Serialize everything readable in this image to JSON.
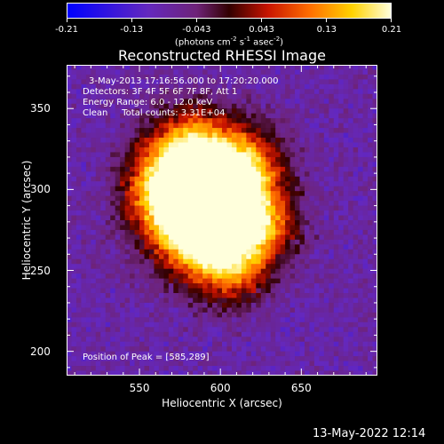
{
  "colorbar": {
    "ticks": [
      "-0.21",
      "-0.13",
      "-0.043",
      "0.043",
      "0.13",
      "0.21"
    ],
    "unit_main": "(photons cm",
    "unit_sup1": "-2",
    "unit_mid1": " s",
    "unit_sup2": "-1",
    "unit_mid2": " asec",
    "unit_sup3": "-2",
    "unit_end": ")"
  },
  "title": "Reconstructed RHESSI Image",
  "annotations": {
    "time": "3-May-2013 17:16:56.000 to 17:20:20.000",
    "detectors": "Detectors: 3F 4F 5F 6F 7F 8F, Att 1",
    "energy": "Energy Range: 6.0 - 12.0 keV",
    "clean": "Clean     Total counts: 3.31E+04",
    "peak": "Position of Peak = [585,289]"
  },
  "footer": "13-May-2022 12:14",
  "chart_data": {
    "type": "heatmap",
    "title": "Reconstructed RHESSI Image",
    "xlabel": "Heliocentric X (arcsec)",
    "ylabel": "Heliocentric Y (arcsec)",
    "xlim": [
      505,
      697
    ],
    "ylim": [
      185,
      377
    ],
    "xticks": [
      550,
      600,
      650
    ],
    "yticks": [
      200,
      250,
      300,
      350
    ],
    "colorbar_range": [
      -0.21,
      0.21
    ],
    "colormap": "hot-on-blue (blue → purple → red → orange → yellow → white)",
    "peak": [
      585,
      289
    ]
  }
}
